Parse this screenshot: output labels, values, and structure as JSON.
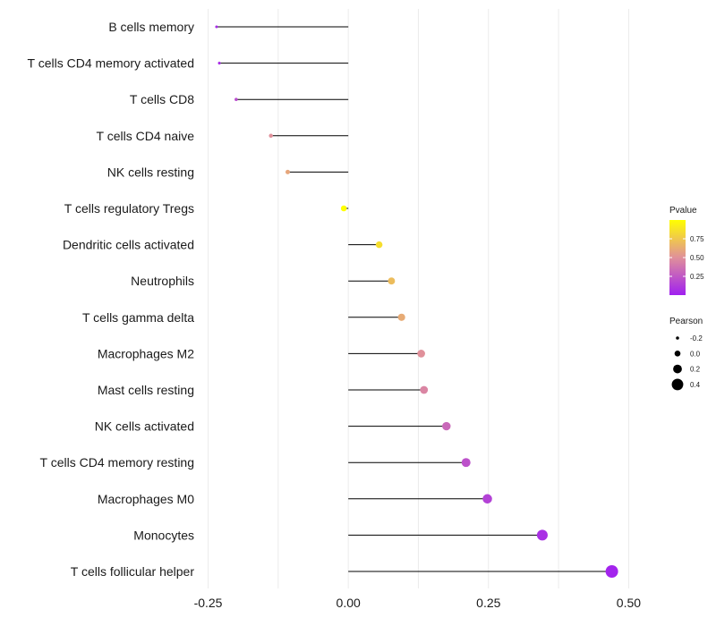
{
  "chart_data": {
    "type": "lollipop",
    "title": "",
    "xlabel": "",
    "ylabel": "",
    "xlim": [
      -0.27,
      0.56
    ],
    "x_ticks": [
      -0.25,
      0.0,
      0.25,
      0.5
    ],
    "x_tick_labels": [
      "-0.25",
      "0.00",
      "0.25",
      "0.50"
    ],
    "minor_grid": [
      -0.125,
      0.125,
      0.375
    ],
    "categories": [
      "B cells memory",
      "T cells CD4 memory activated",
      "T cells CD8",
      "T cells CD4 naive",
      "NK cells resting",
      "T cells regulatory  Tregs ",
      "Dendritic cells activated",
      "Neutrophils",
      "T cells gamma delta",
      "Macrophages M2",
      "Mast cells resting",
      "NK cells activated",
      "T cells CD4 memory resting",
      "Macrophages M0",
      "Monocytes",
      "T cells follicular helper"
    ],
    "pearson": [
      -0.235,
      -0.23,
      -0.2,
      -0.138,
      -0.108,
      -0.008,
      0.055,
      0.077,
      0.095,
      0.13,
      0.135,
      0.175,
      0.21,
      0.248,
      0.346,
      0.47
    ],
    "pvalue": [
      0.05,
      0.06,
      0.2,
      0.5,
      0.6,
      1.0,
      0.85,
      0.7,
      0.62,
      0.5,
      0.45,
      0.32,
      0.22,
      0.15,
      0.07,
      0.02
    ],
    "legend_color": {
      "title": "Pvalue",
      "ticks": [
        0.75,
        0.5,
        0.25
      ],
      "tick_labels": [
        "0.75",
        "0.50",
        "0.25"
      ],
      "low_color": "#a020f0",
      "mid_color": "#e0909a",
      "high_color": "#ffff00"
    },
    "legend_size": {
      "title": "Pearson",
      "values": [
        -0.2,
        0.0,
        0.2,
        0.4
      ],
      "labels": [
        "-0.2",
        "0.0",
        "0.2",
        "0.4"
      ]
    }
  }
}
